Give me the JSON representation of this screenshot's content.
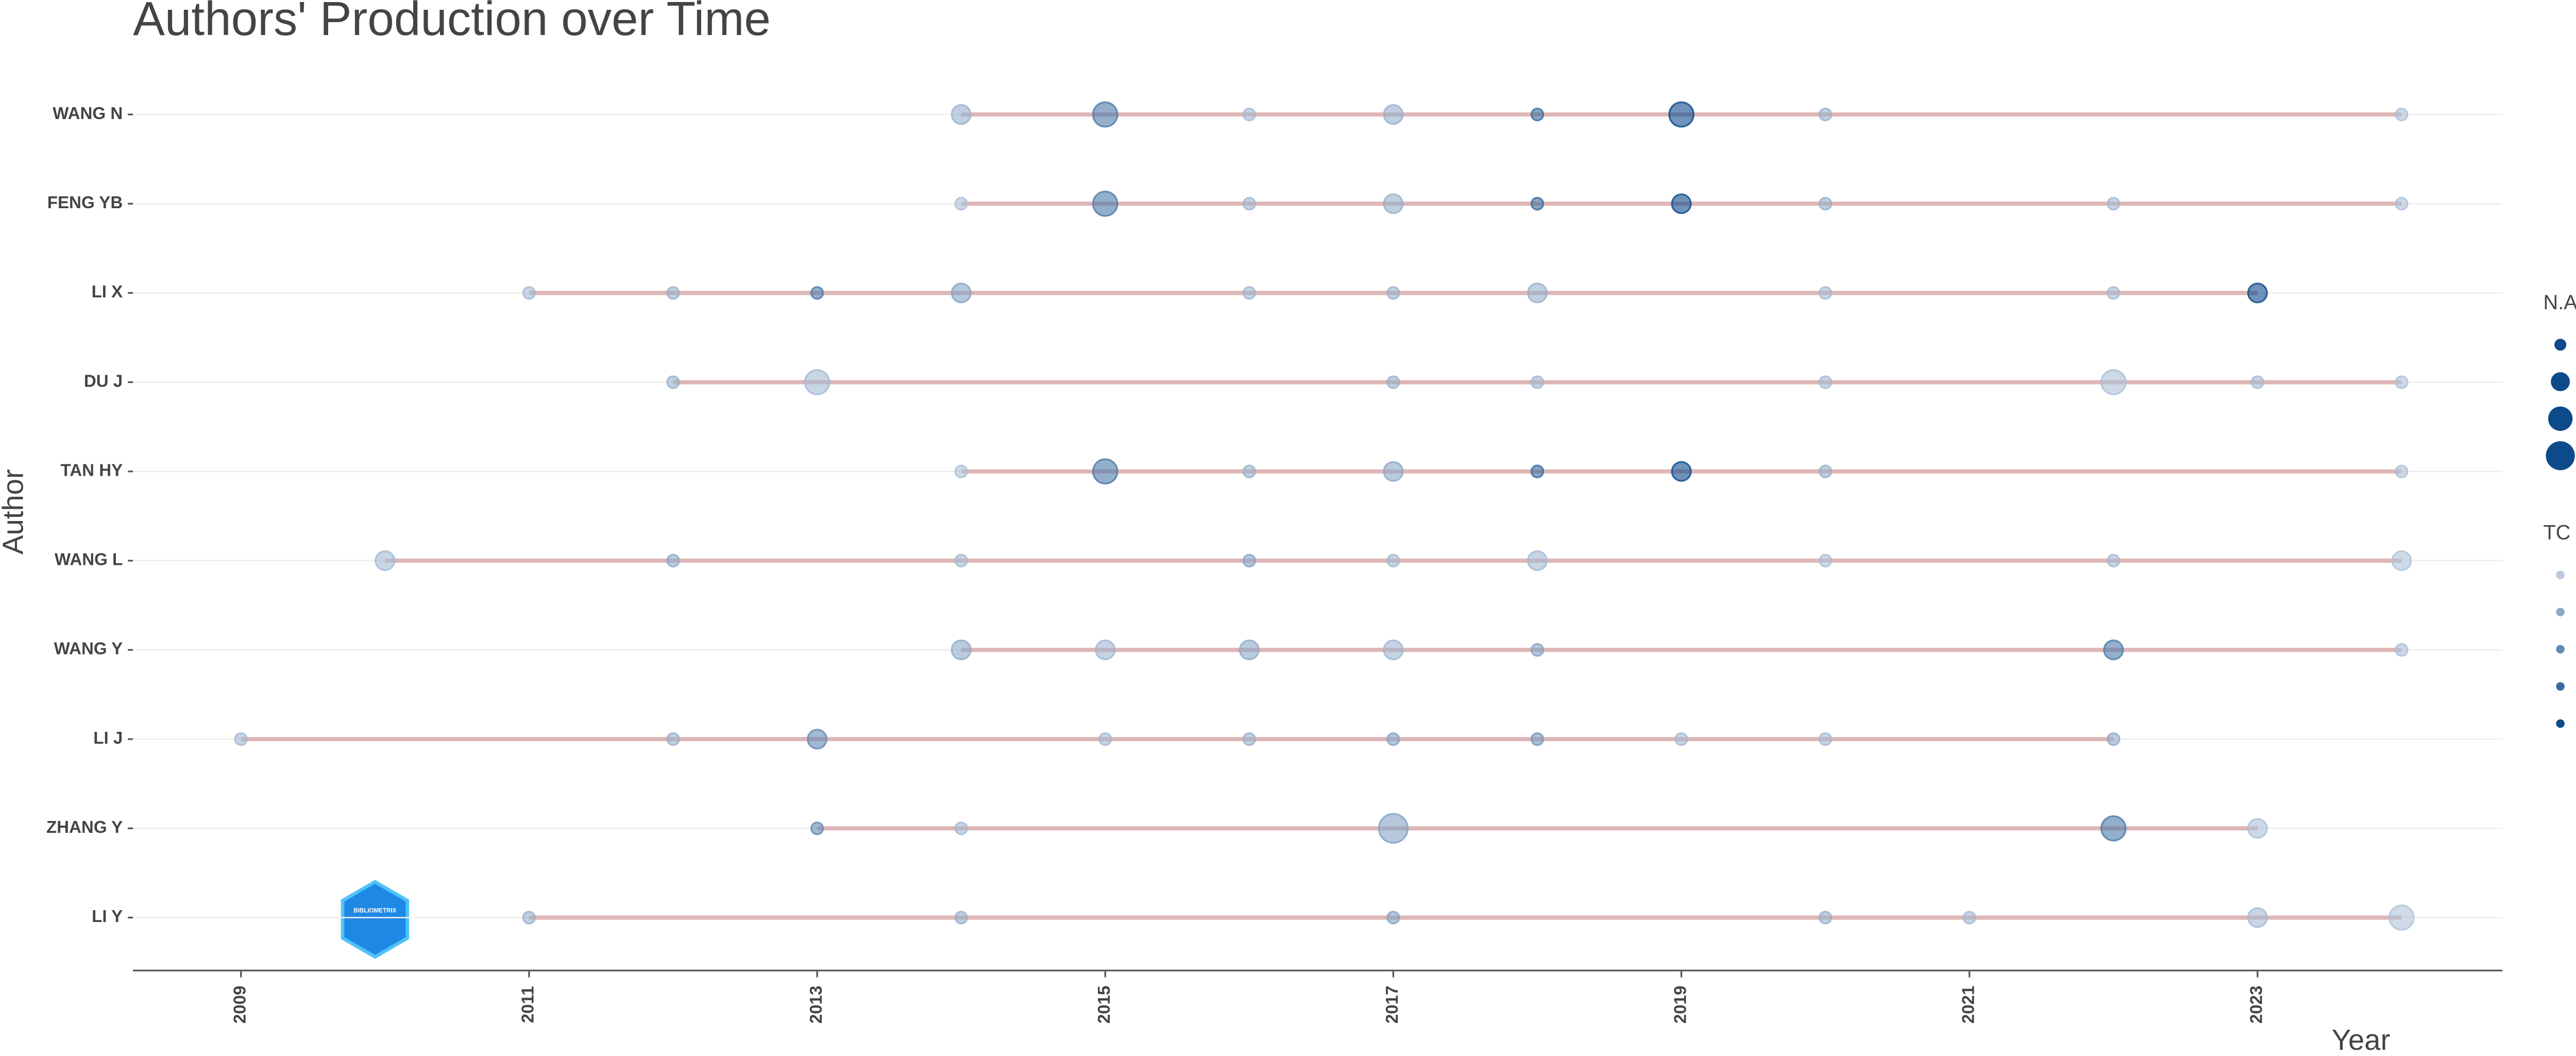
{
  "chart_data": {
    "type": "timeline-bubble",
    "title": "Authors' Production over Time",
    "xlabel": "Year",
    "ylabel": "Author",
    "xlim": [
      2008.25,
      2024.7
    ],
    "xticks": [
      2009,
      2011,
      2013,
      2015,
      2017,
      2019,
      2021,
      2023
    ],
    "line_color": "#d9a7a7",
    "low_color": "#b8c9dd",
    "high_color": "#0d4a8a",
    "size_legend": {
      "title": "N.Articles",
      "values": [
        1,
        2,
        3,
        4
      ]
    },
    "color_legend": {
      "title": "TC per Year",
      "values": [
        0,
        10,
        20,
        30,
        40
      ]
    },
    "logo_text": "BIBLIOMETRIX",
    "rows": [
      {
        "author": "WANG N",
        "years": [
          2014,
          2015,
          2016,
          2017,
          2018,
          2019,
          2020,
          2024
        ],
        "articles": [
          2,
          3,
          1,
          2,
          1,
          3,
          1,
          1
        ],
        "tc_per_year": [
          8,
          25,
          5,
          8,
          30,
          40,
          8,
          3
        ]
      },
      {
        "author": "FENG YB",
        "years": [
          2014,
          2015,
          2016,
          2017,
          2018,
          2019,
          2020,
          2022,
          2024
        ],
        "articles": [
          1,
          3,
          1,
          2,
          1,
          2,
          1,
          1,
          1
        ],
        "tc_per_year": [
          3,
          25,
          6,
          8,
          30,
          40,
          8,
          5,
          3
        ]
      },
      {
        "author": "LI X",
        "years": [
          2011,
          2012,
          2013,
          2014,
          2016,
          2017,
          2018,
          2020,
          2022,
          2023
        ],
        "articles": [
          1,
          1,
          1,
          2,
          1,
          1,
          2,
          1,
          1,
          2
        ],
        "tc_per_year": [
          5,
          8,
          25,
          12,
          6,
          8,
          8,
          5,
          5,
          45
        ]
      },
      {
        "author": "DU J",
        "years": [
          2012,
          2013,
          2017,
          2018,
          2020,
          2022,
          2023,
          2024
        ],
        "articles": [
          1,
          3,
          1,
          1,
          1,
          3,
          1,
          1
        ],
        "tc_per_year": [
          8,
          5,
          8,
          6,
          5,
          3,
          5,
          3
        ]
      },
      {
        "author": "TAN HY",
        "years": [
          2014,
          2015,
          2016,
          2017,
          2018,
          2019,
          2020,
          2024
        ],
        "articles": [
          1,
          3,
          1,
          2,
          1,
          2,
          1,
          1
        ],
        "tc_per_year": [
          3,
          25,
          8,
          10,
          30,
          40,
          8,
          3
        ]
      },
      {
        "author": "WANG L",
        "years": [
          2010,
          2012,
          2014,
          2016,
          2017,
          2018,
          2020,
          2022,
          2024
        ],
        "articles": [
          2,
          1,
          1,
          1,
          1,
          2,
          1,
          1,
          2
        ],
        "tc_per_year": [
          5,
          10,
          5,
          12,
          5,
          5,
          3,
          5,
          2
        ]
      },
      {
        "author": "WANG Y",
        "years": [
          2014,
          2015,
          2016,
          2017,
          2018,
          2022,
          2024
        ],
        "articles": [
          2,
          2,
          2,
          2,
          1,
          2,
          1
        ],
        "tc_per_year": [
          10,
          6,
          10,
          6,
          12,
          25,
          3
        ]
      },
      {
        "author": "LI J",
        "years": [
          2009,
          2012,
          2013,
          2015,
          2016,
          2017,
          2018,
          2019,
          2020,
          2022
        ],
        "articles": [
          1,
          1,
          2,
          1,
          1,
          1,
          1,
          1,
          1,
          1
        ],
        "tc_per_year": [
          5,
          8,
          20,
          5,
          8,
          12,
          15,
          5,
          5,
          10
        ]
      },
      {
        "author": "ZHANG Y",
        "years": [
          2013,
          2014,
          2017,
          2022,
          2023
        ],
        "articles": [
          1,
          1,
          4,
          3,
          2
        ],
        "tc_per_year": [
          20,
          5,
          12,
          25,
          3
        ]
      },
      {
        "author": "LI Y",
        "years": [
          2011,
          2014,
          2017,
          2020,
          2021,
          2023,
          2024
        ],
        "articles": [
          1,
          1,
          1,
          1,
          1,
          2,
          3
        ],
        "tc_per_year": [
          8,
          8,
          12,
          8,
          5,
          5,
          2
        ]
      }
    ]
  }
}
